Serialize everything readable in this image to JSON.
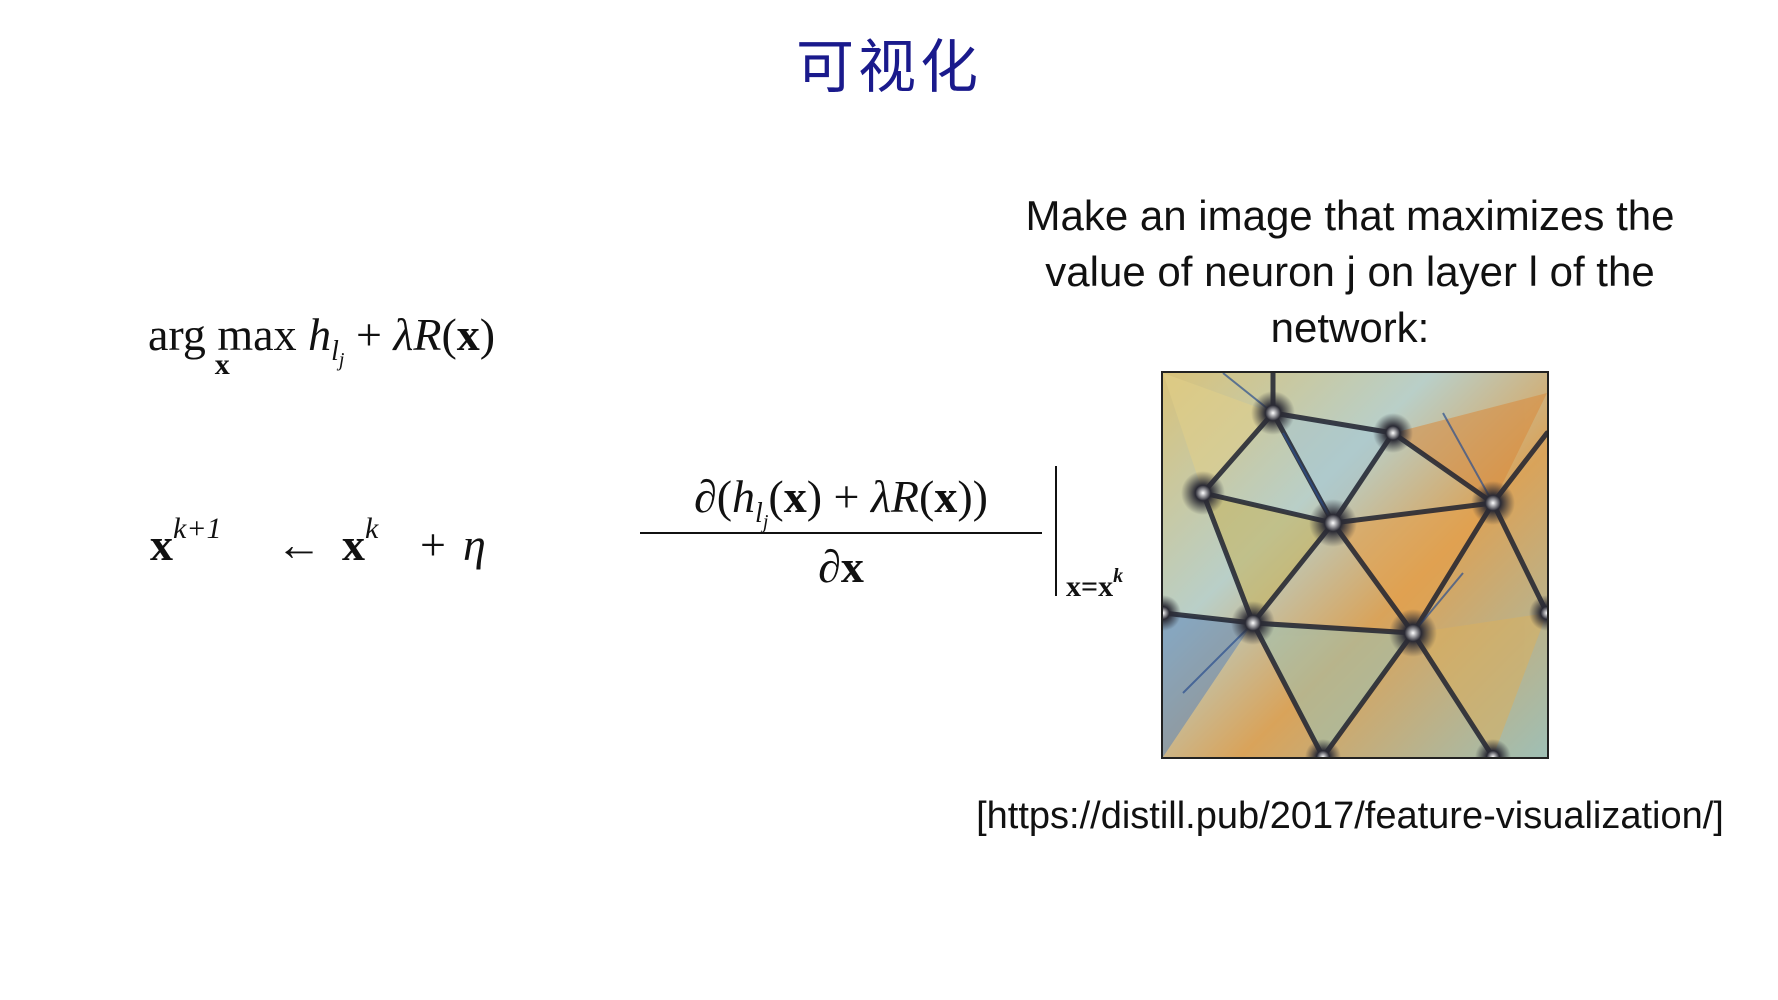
{
  "slide": {
    "title": "可视化"
  },
  "formula_objective": {
    "op": "arg max",
    "under": "x",
    "h": "h",
    "l": "l",
    "j": "j",
    "plus": "+",
    "lambda": "λ",
    "R": "R",
    "lp": "(",
    "x": "x",
    "rp": ")"
  },
  "formula_update": {
    "x_next": "x",
    "sup_next": "k+1",
    "arrow": "←",
    "x_k": "x",
    "sup_k": "k",
    "plus_eta": "+",
    "eta": "η",
    "numerator_prefix": "∂(",
    "numer_h": "h",
    "numer_l": "l",
    "numer_j": "j",
    "numer_mid": "(",
    "numer_x": "x",
    "numer_rest": ") + ",
    "numer_lambda": "λ",
    "numer_R": "R",
    "numer_lp": "(",
    "numer_x2": "x",
    "numer_end": "))",
    "denominator_partial": "∂",
    "denominator_x": "x",
    "eval_lhs": "x=x",
    "eval_sup": "k"
  },
  "description": {
    "text": "Make an image that maximizes the value of neuron j on layer l of the network:"
  },
  "citation": {
    "text": "[https://distill.pub/2017/feature-visualization/]"
  },
  "colors": {
    "title": "#1a1a8c",
    "text": "#111111"
  }
}
